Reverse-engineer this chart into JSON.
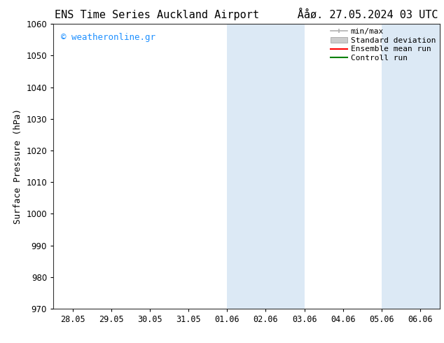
{
  "title_left": "ENS Time Series Auckland Airport",
  "title_right": "Ååø. 27.05.2024 03 UTC",
  "ylabel": "Surface Pressure (hPa)",
  "ylim": [
    970,
    1060
  ],
  "yticks": [
    970,
    980,
    990,
    1000,
    1010,
    1020,
    1030,
    1040,
    1050,
    1060
  ],
  "xtick_labels": [
    "28.05",
    "29.05",
    "30.05",
    "31.05",
    "01.06",
    "02.06",
    "03.06",
    "04.06",
    "05.06",
    "06.06"
  ],
  "background_color": "#ffffff",
  "plot_bg_color": "#ffffff",
  "shaded_color": "#dce9f5",
  "shaded_regions": [
    {
      "xstart": 4.0,
      "xend": 6.0
    },
    {
      "xstart": 8.0,
      "xend": 9.5
    }
  ],
  "watermark_text": "© weatheronline.gr",
  "watermark_color": "#1e90ff",
  "legend_entries": [
    {
      "label": "min/max",
      "color": "#b0b0b0",
      "type": "errorbar"
    },
    {
      "label": "Standard deviation",
      "color": "#cccccc",
      "type": "fill"
    },
    {
      "label": "Ensemble mean run",
      "color": "#ff0000",
      "type": "line"
    },
    {
      "label": "Controll run",
      "color": "#008000",
      "type": "line"
    }
  ],
  "title_fontsize": 11,
  "axis_fontsize": 9,
  "tick_fontsize": 8.5,
  "legend_fontsize": 8,
  "watermark_fontsize": 9,
  "fig_width": 6.34,
  "fig_height": 4.9,
  "dpi": 100
}
